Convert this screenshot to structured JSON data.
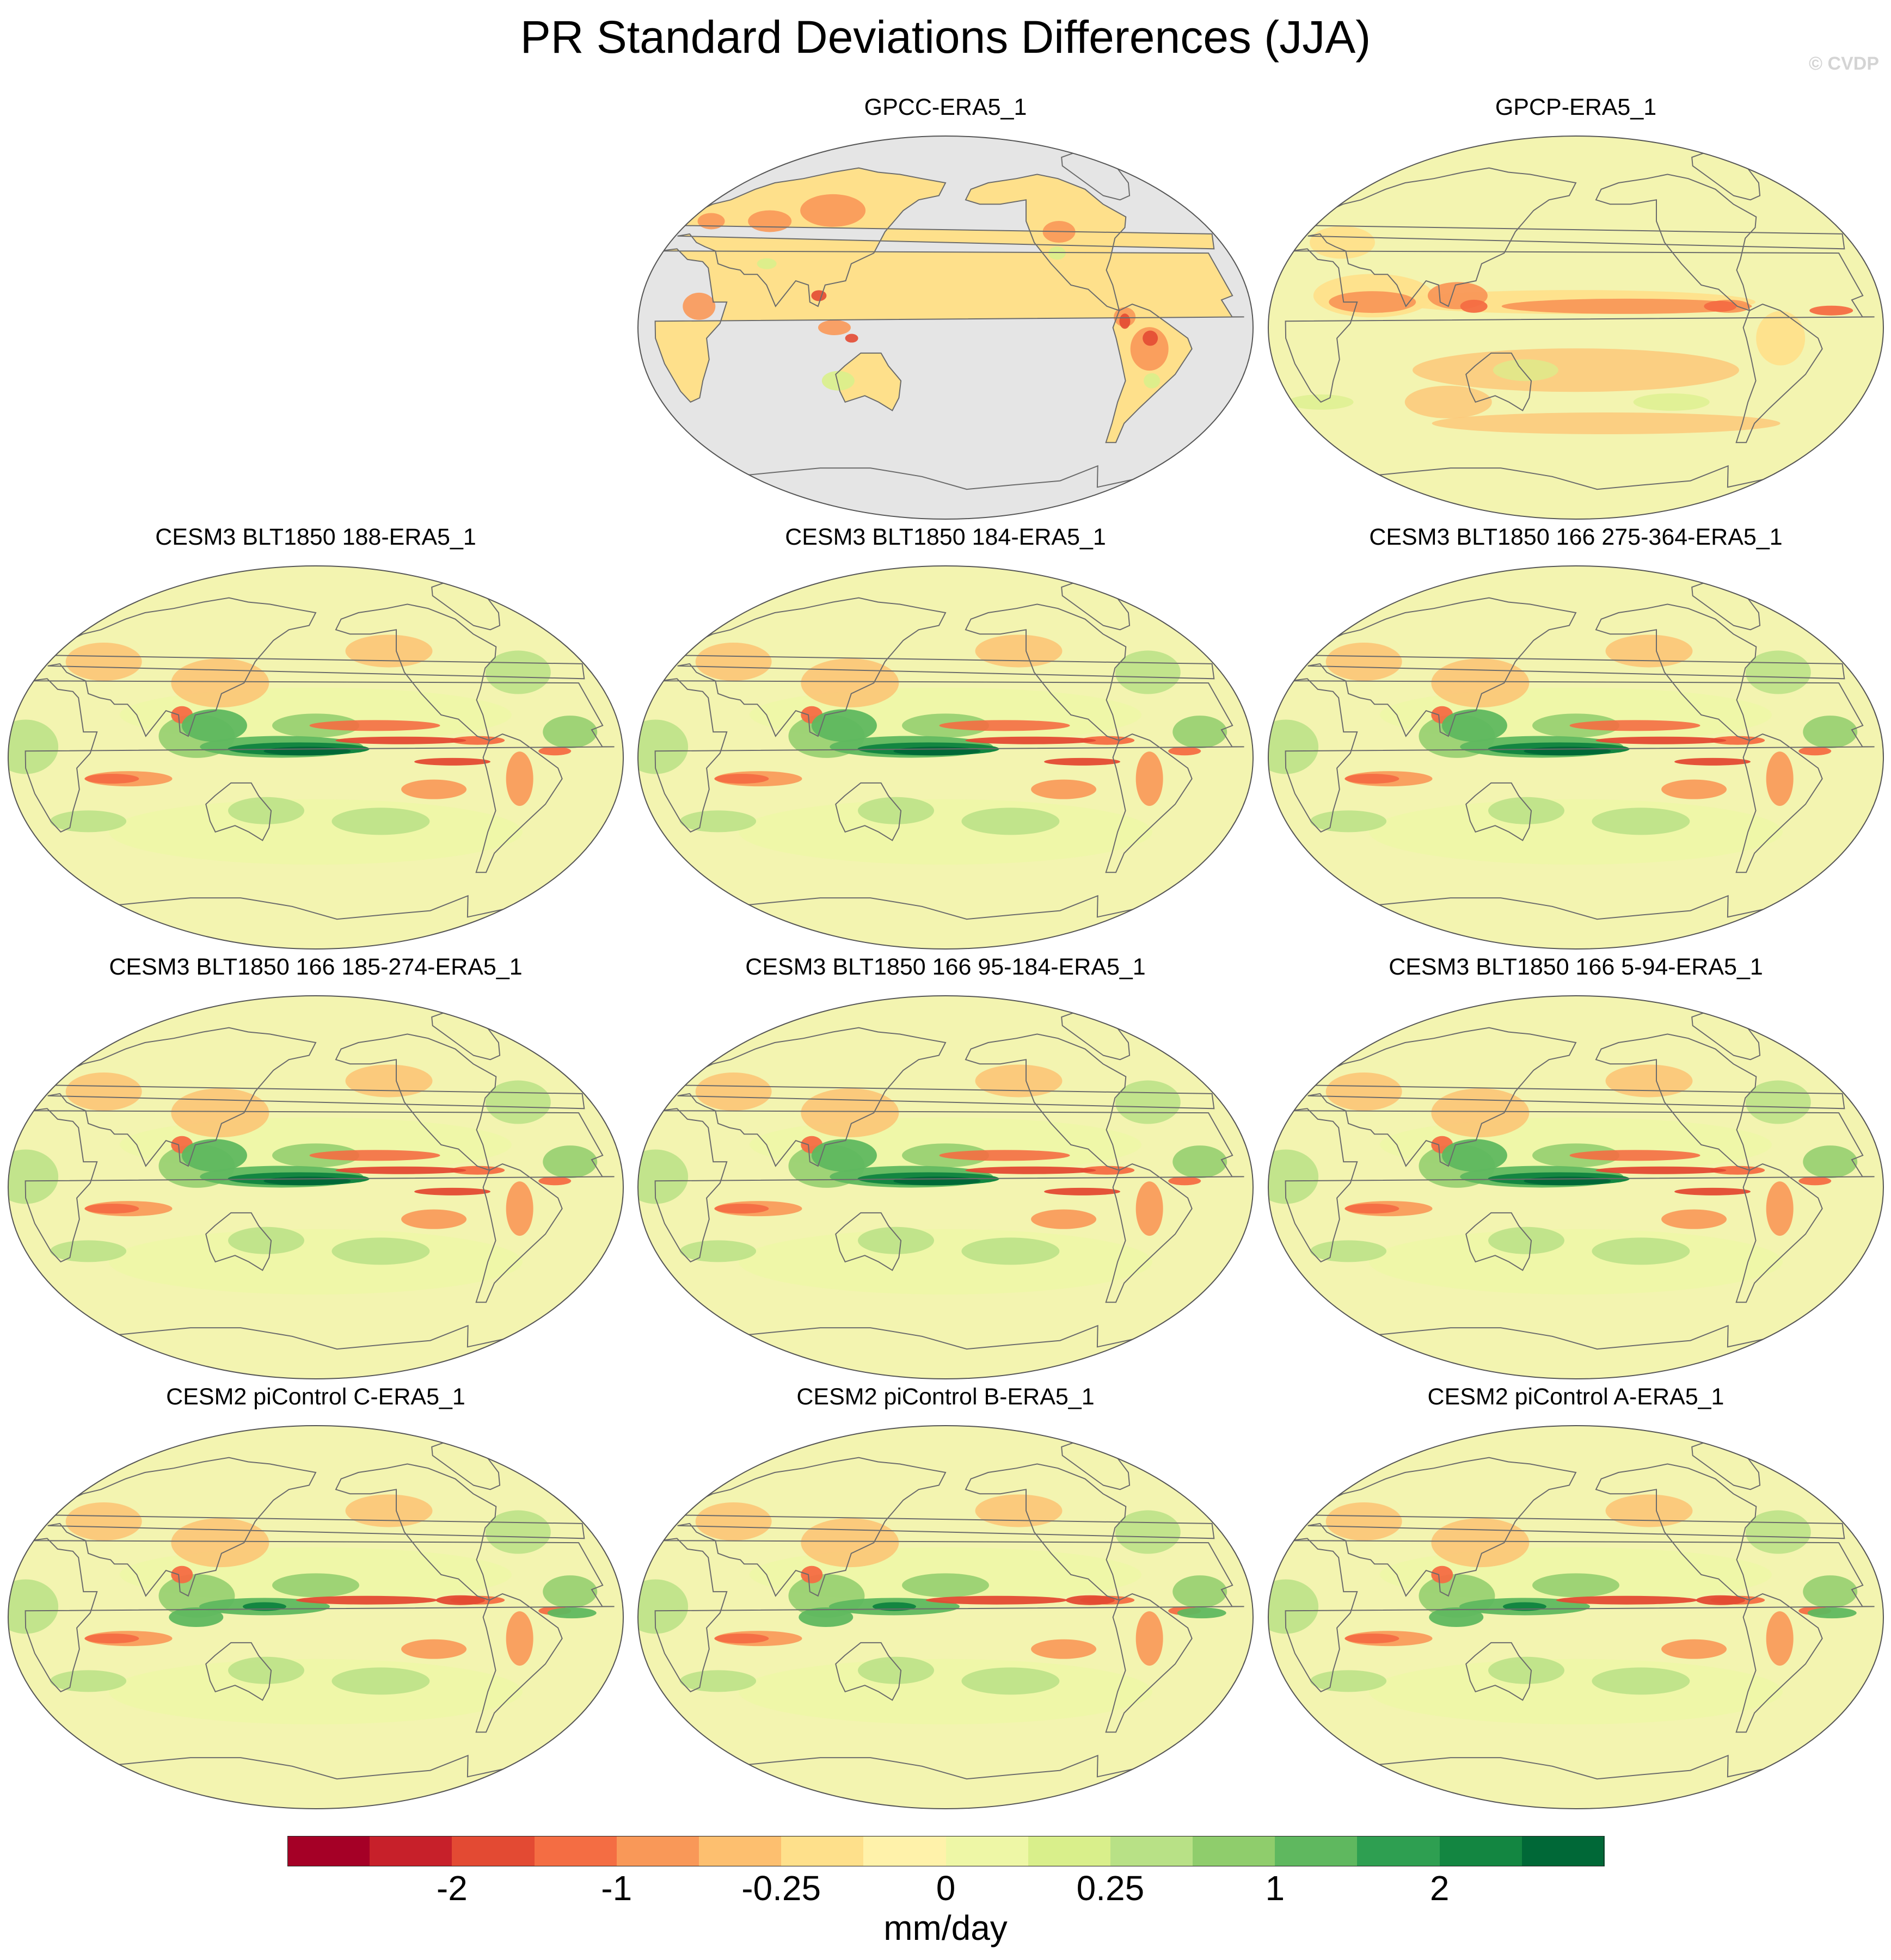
{
  "title": "PR Standard Deviations Differences (JJA)",
  "credit": "© CVDP",
  "panels": [
    {
      "label": "GPCC-ERA5_1",
      "style": "land"
    },
    {
      "label": "GPCP-ERA5_1",
      "style": "dry"
    },
    {
      "label": "CESM3 BLT1850 188-ERA5_1",
      "style": "model"
    },
    {
      "label": "CESM3 BLT1850 184-ERA5_1",
      "style": "model"
    },
    {
      "label": "CESM3 BLT1850 166 275-364-ERA5_1",
      "style": "model"
    },
    {
      "label": "CESM3 BLT1850 166 185-274-ERA5_1",
      "style": "model"
    },
    {
      "label": "CESM3 BLT1850 166 95-184-ERA5_1",
      "style": "model"
    },
    {
      "label": "CESM3 BLT1850 166 5-94-ERA5_1",
      "style": "model"
    },
    {
      "label": "CESM2 piControl C-ERA5_1",
      "style": "cesm2"
    },
    {
      "label": "CESM2 piControl B-ERA5_1",
      "style": "cesm2"
    },
    {
      "label": "CESM2 piControl A-ERA5_1",
      "style": "cesm2"
    }
  ],
  "colorbar": {
    "colors": [
      "#a50026",
      "#c7202a",
      "#e34a33",
      "#f46d43",
      "#f99858",
      "#fdbf6f",
      "#fee08b",
      "#fff2aa",
      "#eef7a6",
      "#d9ef8b",
      "#b8e186",
      "#8fcd6c",
      "#5fb85f",
      "#2e9f51",
      "#138641",
      "#006837"
    ],
    "tick_labels": [
      "-2",
      "-1",
      "-0.25",
      "0",
      "0.25",
      "1",
      "2"
    ],
    "units": "mm/day"
  },
  "colors": {
    "missing": "#e5e5e5",
    "coastline": "#6b6b6b",
    "neutral": "#f3f4b0"
  }
}
